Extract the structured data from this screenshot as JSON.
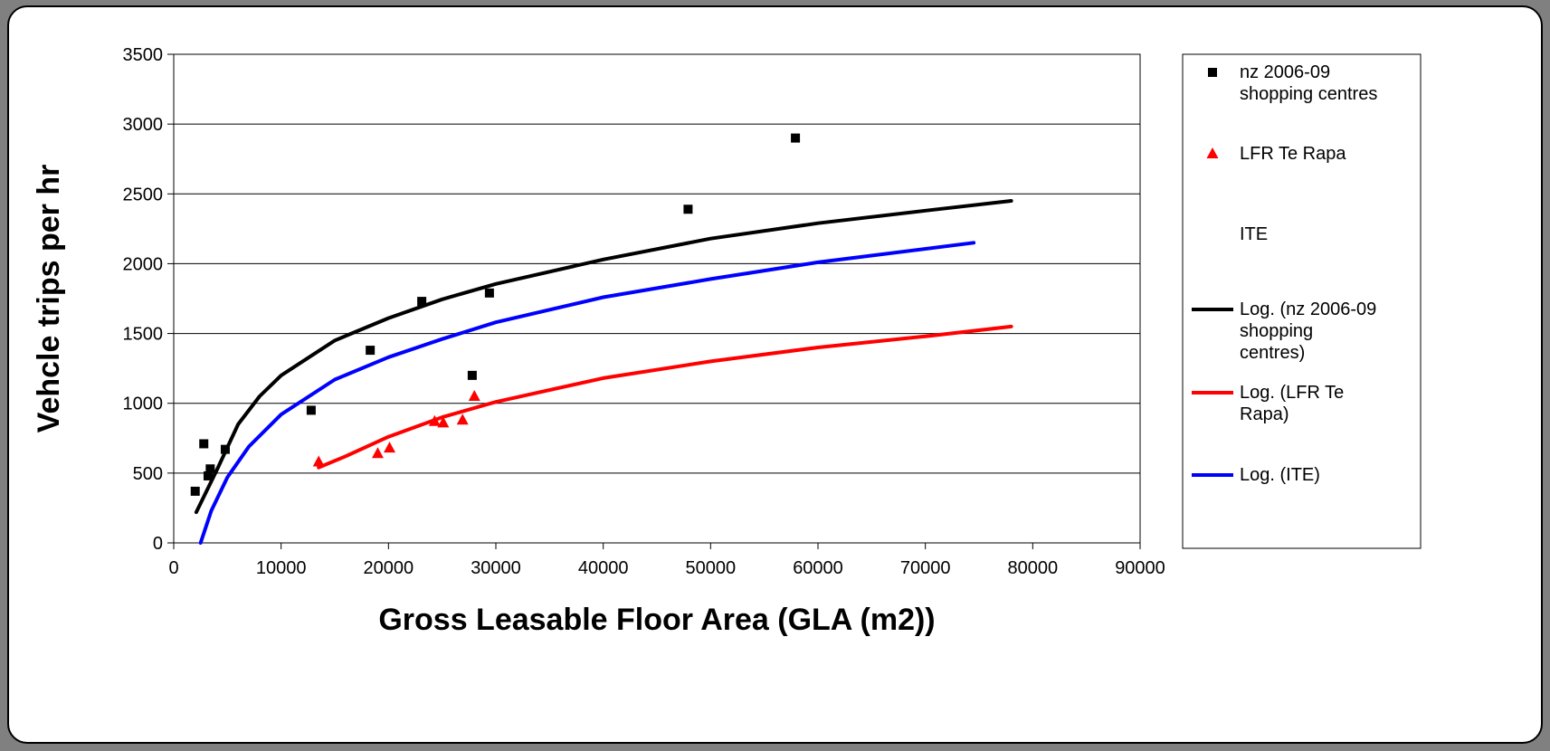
{
  "chart_data": {
    "type": "scatter",
    "title": "",
    "xlabel": "Gross Leasable Floor Area (GLA (m2))",
    "ylabel": "Vehcle trips per hr",
    "xlim": [
      0,
      90000
    ],
    "ylim": [
      0,
      3500
    ],
    "x_ticks": [
      "0",
      "10000",
      "20000",
      "30000",
      "40000",
      "50000",
      "60000",
      "70000",
      "80000",
      "90000"
    ],
    "y_ticks": [
      "0",
      "500",
      "1000",
      "1500",
      "2000",
      "2500",
      "3000",
      "3500"
    ],
    "grid": "horizontal",
    "legend_position": "right",
    "series": [
      {
        "name": "nz 2006-09 shopping centres",
        "kind": "points",
        "marker": "square",
        "color": "#000000",
        "points": [
          [
            2000,
            370
          ],
          [
            2800,
            710
          ],
          [
            3200,
            480
          ],
          [
            3400,
            530
          ],
          [
            4800,
            670
          ],
          [
            12800,
            950
          ],
          [
            18300,
            1380
          ],
          [
            23100,
            1730
          ],
          [
            27800,
            1200
          ],
          [
            29400,
            1790
          ],
          [
            47900,
            2390
          ],
          [
            57900,
            2900
          ]
        ]
      },
      {
        "name": "LFR Te Rapa",
        "kind": "points",
        "marker": "triangle",
        "color": "#ff0000",
        "points": [
          [
            13500,
            580
          ],
          [
            19000,
            640
          ],
          [
            20100,
            680
          ],
          [
            24300,
            870
          ],
          [
            25100,
            860
          ],
          [
            26900,
            880
          ],
          [
            28000,
            1050
          ]
        ]
      },
      {
        "name": "ITE",
        "kind": "points",
        "marker": "none",
        "color": "#ffffff",
        "points": []
      },
      {
        "name": "Log. (nz 2006-09 shopping centres)",
        "kind": "line",
        "color": "#000000",
        "points": [
          [
            2100,
            220
          ],
          [
            4000,
            520
          ],
          [
            6000,
            850
          ],
          [
            8000,
            1050
          ],
          [
            10000,
            1200
          ],
          [
            15000,
            1450
          ],
          [
            20000,
            1610
          ],
          [
            25000,
            1745
          ],
          [
            30000,
            1855
          ],
          [
            40000,
            2030
          ],
          [
            50000,
            2180
          ],
          [
            60000,
            2290
          ],
          [
            70000,
            2380
          ],
          [
            78000,
            2450
          ]
        ]
      },
      {
        "name": "Log. (LFR Te Rapa)",
        "kind": "line",
        "color": "#ff0000",
        "points": [
          [
            13500,
            540
          ],
          [
            16000,
            620
          ],
          [
            20000,
            760
          ],
          [
            25000,
            900
          ],
          [
            30000,
            1010
          ],
          [
            40000,
            1180
          ],
          [
            50000,
            1300
          ],
          [
            60000,
            1400
          ],
          [
            70000,
            1480
          ],
          [
            78000,
            1550
          ]
        ]
      },
      {
        "name": "Log. (ITE)",
        "kind": "line",
        "color": "#0000ff",
        "points": [
          [
            2500,
            0
          ],
          [
            3500,
            230
          ],
          [
            5000,
            470
          ],
          [
            7000,
            690
          ],
          [
            10000,
            920
          ],
          [
            15000,
            1170
          ],
          [
            20000,
            1330
          ],
          [
            25000,
            1460
          ],
          [
            30000,
            1580
          ],
          [
            40000,
            1760
          ],
          [
            50000,
            1890
          ],
          [
            60000,
            2010
          ],
          [
            74500,
            2150
          ]
        ]
      }
    ]
  },
  "legend": {
    "items": [
      {
        "label_lines": [
          "nz 2006-09",
          "shopping centres"
        ],
        "symbol": "square",
        "color": "#000000"
      },
      {
        "label_lines": [
          "LFR Te Rapa"
        ],
        "symbol": "triangle",
        "color": "#ff0000"
      },
      {
        "label_lines": [
          "ITE"
        ],
        "symbol": "none",
        "color": "#ffffff"
      },
      {
        "label_lines": [
          "Log. (nz 2006-09",
          "shopping",
          "centres)"
        ],
        "symbol": "line",
        "color": "#000000"
      },
      {
        "label_lines": [
          "Log. (LFR Te",
          "Rapa)"
        ],
        "symbol": "line",
        "color": "#ff0000"
      },
      {
        "label_lines": [
          "Log. (ITE)"
        ],
        "symbol": "line",
        "color": "#0000ff"
      }
    ]
  }
}
